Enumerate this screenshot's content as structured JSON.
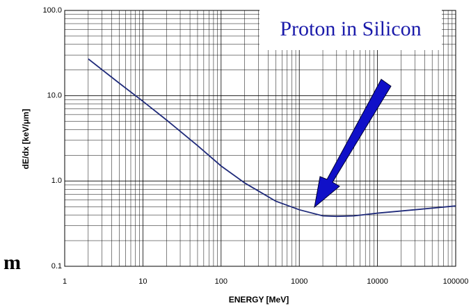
{
  "chart_data": {
    "type": "line",
    "log_x": true,
    "log_y": true,
    "grid": true,
    "minor_grid": true,
    "xlabel": "ENERGY [MeV]",
    "ylabel": "dE/dx  [keV/μm]",
    "annotation": "Proton in Silicon",
    "edge_text": "m",
    "xlim": [
      1,
      100000
    ],
    "xticks": [
      1,
      10,
      100,
      1000,
      10000,
      100000
    ],
    "ylim": [
      0.1,
      100
    ],
    "yticks": [
      0.1,
      {
        "value": 1,
        "label": "1.0"
      },
      {
        "value": 10,
        "label": "10.0"
      },
      {
        "value": 100,
        "label": "100.0"
      }
    ],
    "series": [
      {
        "name": "Proton in Silicon",
        "color": "#1f2a7a",
        "x": [
          2,
          5,
          10,
          20,
          50,
          100,
          200,
          500,
          1000,
          2000,
          3000,
          5000,
          10000,
          30000,
          100000
        ],
        "values": [
          27,
          14,
          8.6,
          5.2,
          2.6,
          1.5,
          0.95,
          0.58,
          0.46,
          0.39,
          0.385,
          0.39,
          0.42,
          0.46,
          0.51
        ]
      }
    ]
  }
}
